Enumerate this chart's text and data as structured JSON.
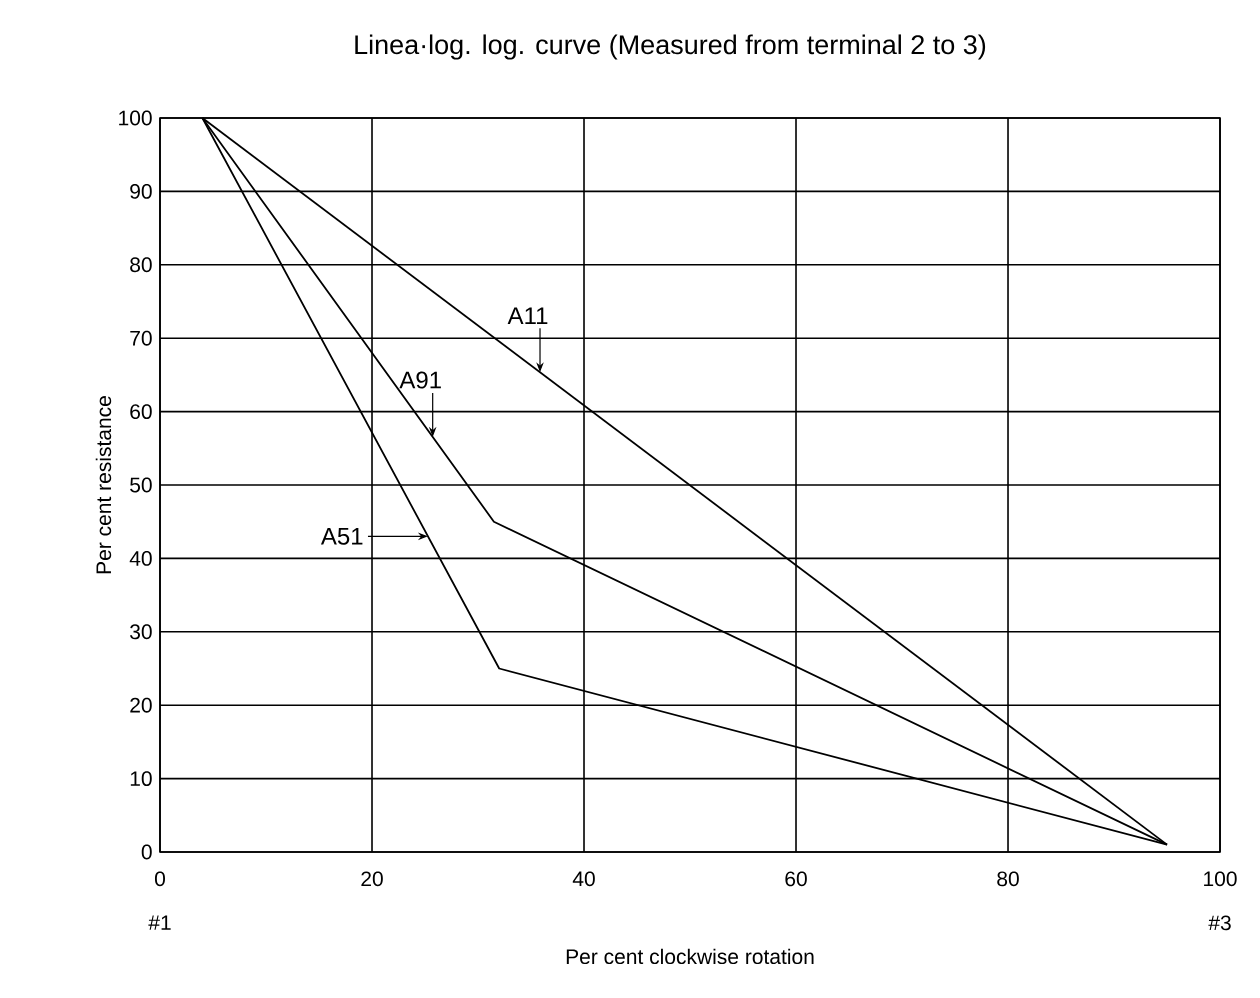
{
  "chart_data": {
    "type": "line",
    "title": "Linea·log. log. curve (Measured from terminal 2 to 3)",
    "xlabel": "Per cent clockwise rotation",
    "ylabel": "Per cent resistance",
    "xlim": [
      0,
      100
    ],
    "ylim": [
      0,
      100
    ],
    "xticks": [
      0,
      20,
      40,
      60,
      80,
      100
    ],
    "yticks": [
      0,
      10,
      20,
      30,
      40,
      50,
      60,
      70,
      80,
      90,
      100
    ],
    "grid": true,
    "series": [
      {
        "name": "A11",
        "color": "#000000",
        "x": [
          4,
          95
        ],
        "values": [
          100,
          1
        ]
      },
      {
        "name": "A91",
        "color": "#000000",
        "x": [
          4,
          31.5,
          95
        ],
        "values": [
          100,
          45,
          1
        ]
      },
      {
        "name": "A51",
        "color": "#000000",
        "x": [
          4,
          32,
          95
        ],
        "values": [
          100,
          25,
          1
        ]
      }
    ],
    "annotations": [
      "#1",
      "#3"
    ]
  }
}
